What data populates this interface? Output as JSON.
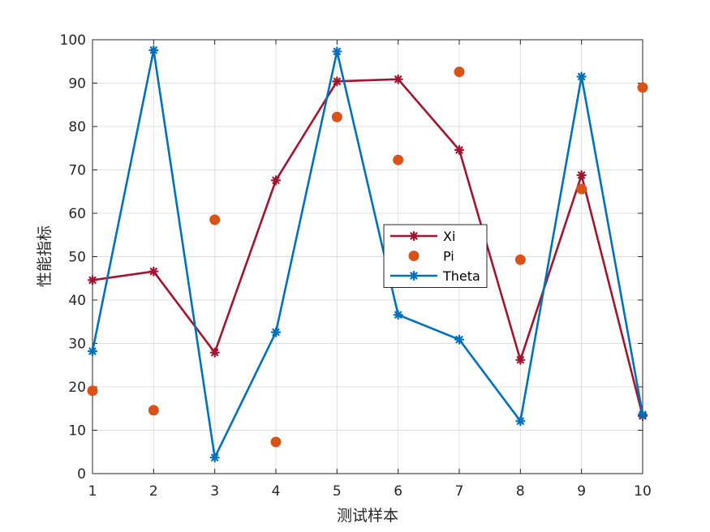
{
  "chart_data": {
    "type": "line",
    "title": "",
    "xlabel": "测试样本",
    "ylabel": "性能指标",
    "xlim": [
      1,
      10
    ],
    "ylim": [
      0,
      100
    ],
    "x": [
      1,
      2,
      3,
      4,
      5,
      6,
      7,
      8,
      9,
      10
    ],
    "xticks": [
      "1",
      "2",
      "3",
      "4",
      "5",
      "6",
      "7",
      "8",
      "9",
      "10"
    ],
    "yticks": [
      "0",
      "10",
      "20",
      "30",
      "40",
      "50",
      "60",
      "70",
      "80",
      "90",
      "100"
    ],
    "grid": true,
    "legend_position": "center-right",
    "series": [
      {
        "name": "Xi",
        "style": "line-asterisk",
        "color": "#A2142F",
        "values": [
          44.6,
          46.6,
          27.9,
          67.6,
          90.4,
          90.9,
          74.6,
          26.2,
          68.8,
          13.3
        ]
      },
      {
        "name": "Pi",
        "style": "dots",
        "color": "#D95319",
        "values": [
          19.1,
          14.6,
          58.5,
          7.3,
          82.2,
          72.3,
          92.6,
          49.3,
          65.6,
          89.0
        ]
      },
      {
        "name": "Theta",
        "style": "line-asterisk",
        "color": "#0072BD",
        "values": [
          28.2,
          97.6,
          3.7,
          32.6,
          97.3,
          36.6,
          30.9,
          12.1,
          91.5,
          13.6
        ]
      }
    ]
  }
}
